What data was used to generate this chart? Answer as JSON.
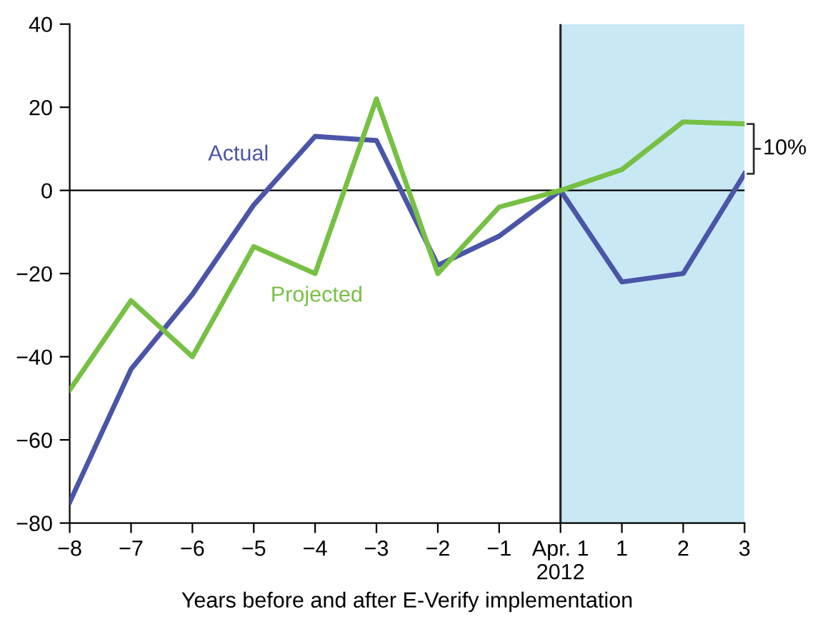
{
  "chart_data": {
    "type": "line",
    "xlabel": "Years before and after E-Verify implementation",
    "x": [
      -8,
      -7,
      -6,
      -5,
      -4,
      -3,
      -2,
      -1,
      0,
      1,
      2,
      3
    ],
    "series": [
      {
        "name": "Actual",
        "color": "#4a55a8",
        "values": [
          -75,
          -43,
          -25,
          -3.5,
          13,
          12,
          -18,
          -11,
          0,
          -22,
          -20,
          4
        ]
      },
      {
        "name": "Projected",
        "color": "#76c043",
        "values": [
          -48,
          -26.5,
          -40,
          -13.5,
          -20,
          22,
          -20,
          -4,
          0,
          5,
          16.5,
          16
        ]
      }
    ],
    "xlim": [
      -8,
      3
    ],
    "ylim": [
      -80,
      40
    ],
    "xticks": [
      -8,
      -7,
      -6,
      -5,
      -4,
      -3,
      -2,
      -1,
      {
        "value": 0,
        "label": "Apr. 1\n2012"
      },
      1,
      2,
      3
    ],
    "yticks": [
      -80,
      -60,
      -40,
      -20,
      0,
      20,
      40
    ],
    "ref_lines": [
      {
        "axis": "y",
        "value": 0,
        "color": "#000000"
      },
      {
        "axis": "x",
        "value": 0,
        "color": "#222222"
      }
    ],
    "bands": [
      {
        "axis": "x",
        "from": 0,
        "to": 3,
        "color": "#c8e8f4"
      }
    ],
    "annotations": [
      {
        "text": "10%",
        "x": 3,
        "y": 10
      }
    ],
    "grid": false,
    "legend": false,
    "marker": "none",
    "line_style": "solid"
  }
}
